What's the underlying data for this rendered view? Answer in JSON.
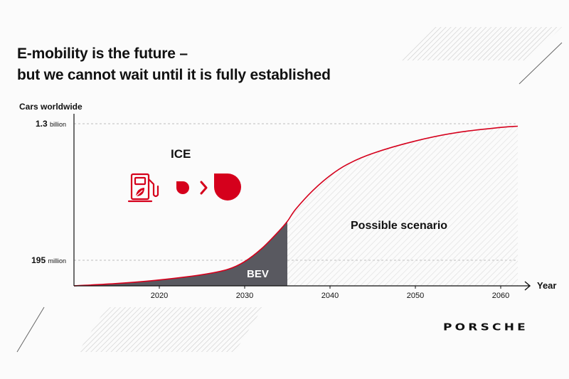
{
  "slide": {
    "title_line1": "E-mobility is the future –",
    "title_line2": "but we cannot wait until it is fully established",
    "brand": "PORSCHE"
  },
  "colors": {
    "accent_red": "#d5001c",
    "bev_fill": "#595960",
    "text": "#111111",
    "hatch": "#d8d8d8"
  },
  "icons": [
    "fuel-pump-leaf-icon",
    "small-drop-icon",
    "chevron-right-icon",
    "large-drop-icon"
  ],
  "chart_data": {
    "type": "area",
    "ylabel": "Cars worldwide",
    "xlabel": "Year",
    "x_ticks": [
      2020,
      2030,
      2040,
      2050,
      2060
    ],
    "xlim": [
      2010,
      2063
    ],
    "y_levels": [
      {
        "value": 195,
        "number_label": "195",
        "unit_label": "million"
      },
      {
        "value": 1300,
        "number_label": "1.3",
        "unit_label": "billion"
      }
    ],
    "ylim": [
      0,
      1300
    ],
    "series": [
      {
        "x": [
          2010,
          2015,
          2020,
          2025,
          2028,
          2030,
          2032,
          2034,
          2035,
          2036,
          2038,
          2040,
          2042,
          2045,
          2050,
          2055,
          2060,
          2062
        ],
        "y": [
          0,
          18,
          45,
          85,
          125,
          185,
          290,
          430,
          510,
          610,
          760,
          880,
          970,
          1060,
          1160,
          1230,
          1270,
          1280
        ]
      }
    ],
    "bev_until": 2035,
    "annotations": {
      "bev": "BEV",
      "scenario": "Possible scenario",
      "ice": "ICE"
    }
  }
}
